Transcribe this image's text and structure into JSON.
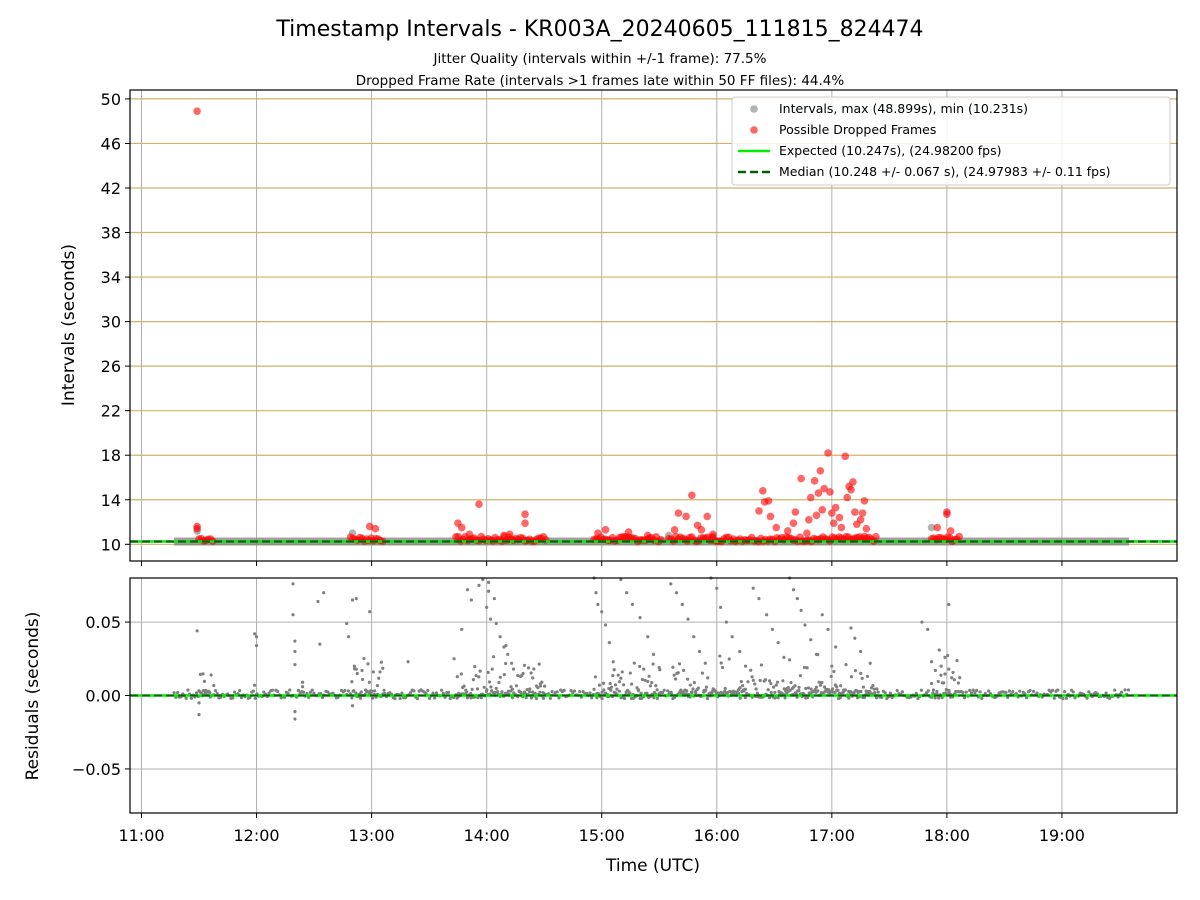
{
  "title": "Timestamp Intervals - KR003A_20240605_111815_824474",
  "subtitle_line1": "Jitter Quality (intervals within +/-1 frame): 77.5%",
  "subtitle_line2": "Dropped Frame Rate (intervals >1 frames late within 50 FF files): 44.4%",
  "colors": {
    "intervals": "#808080",
    "dropped": "#ff0000",
    "expected": "#00ee00",
    "median": "#006400",
    "hgrid_top": "#d4b06a",
    "grid": "#b0b0b0"
  },
  "chart_data": [
    {
      "type": "scatter",
      "name": "intervals",
      "ylabel": "Intervals (seconds)",
      "xlim": [
        "10:54",
        "20:00"
      ],
      "ylim": [
        8.5,
        50.8
      ],
      "yticks": [
        10,
        14,
        18,
        22,
        26,
        30,
        34,
        38,
        42,
        46,
        50
      ],
      "xticks": [
        "11:00",
        "12:00",
        "13:00",
        "14:00",
        "15:00",
        "16:00",
        "17:00",
        "18:00",
        "19:00"
      ],
      "grid": true,
      "legend_position": "top-right",
      "legend": [
        "Intervals, max (48.899s), min (10.231s)",
        "Possible Dropped Frames",
        "Expected (10.247s), (24.98200 fps)",
        "Median (10.248 +/- 0.067 s), (24.97983 +/- 0.11 fps)"
      ],
      "expected": 10.247,
      "median": 10.248,
      "max": 48.899,
      "min": 10.231,
      "dropped_points": [
        [
          "11:29",
          48.9
        ],
        [
          "11:29",
          11.6
        ],
        [
          "11:29",
          11.4
        ],
        [
          "12:59",
          11.6
        ],
        [
          "13:02",
          11.4
        ],
        [
          "13:45",
          11.9
        ],
        [
          "13:47",
          11.5
        ],
        [
          "13:51",
          10.9
        ],
        [
          "13:56",
          13.6
        ],
        [
          "14:09",
          10.8
        ],
        [
          "14:12",
          10.9
        ],
        [
          "14:20",
          12.7
        ],
        [
          "14:20",
          11.9
        ],
        [
          "14:58",
          11.0
        ],
        [
          "15:02",
          11.3
        ],
        [
          "15:14",
          11.1
        ],
        [
          "15:24",
          10.8
        ],
        [
          "15:38",
          11.3
        ],
        [
          "15:40",
          12.8
        ],
        [
          "15:44",
          12.5
        ],
        [
          "15:47",
          14.4
        ],
        [
          "15:50",
          11.7
        ],
        [
          "15:52",
          11.3
        ],
        [
          "15:55",
          12.5
        ],
        [
          "15:58",
          10.9
        ],
        [
          "16:22",
          13.0
        ],
        [
          "16:24",
          14.8
        ],
        [
          "16:25",
          13.8
        ],
        [
          "16:27",
          13.9
        ],
        [
          "16:28",
          12.5
        ],
        [
          "16:31",
          11.5
        ],
        [
          "16:37",
          11.2
        ],
        [
          "16:40",
          11.9
        ],
        [
          "16:41",
          12.9
        ],
        [
          "16:44",
          15.9
        ],
        [
          "16:47",
          11.0
        ],
        [
          "16:48",
          12.2
        ],
        [
          "16:49",
          14.2
        ],
        [
          "16:51",
          15.7
        ],
        [
          "16:52",
          12.6
        ],
        [
          "16:53",
          14.6
        ],
        [
          "16:54",
          16.6
        ],
        [
          "16:55",
          13.1
        ],
        [
          "16:56",
          15.0
        ],
        [
          "16:58",
          18.2
        ],
        [
          "16:59",
          14.7
        ],
        [
          "17:00",
          12.8
        ],
        [
          "17:01",
          11.9
        ],
        [
          "17:02",
          13.3
        ],
        [
          "17:04",
          12.4
        ],
        [
          "17:05",
          11.5
        ],
        [
          "17:07",
          17.9
        ],
        [
          "17:08",
          14.2
        ],
        [
          "17:09",
          15.2
        ],
        [
          "17:10",
          14.9
        ],
        [
          "17:11",
          15.6
        ],
        [
          "17:12",
          12.9
        ],
        [
          "17:13",
          11.8
        ],
        [
          "17:15",
          12.2
        ],
        [
          "17:16",
          12.8
        ],
        [
          "17:17",
          13.9
        ],
        [
          "17:18",
          11.4
        ],
        [
          "17:55",
          11.5
        ],
        [
          "18:00",
          12.9
        ],
        [
          "18:00",
          12.7
        ],
        [
          "18:02",
          11.2
        ]
      ],
      "dropped_clusters": [
        [
          "11:30",
          "11:38"
        ],
        [
          "12:49",
          "13:07"
        ],
        [
          "13:44",
          "14:31"
        ],
        [
          "14:56",
          "15:31"
        ],
        [
          "15:35",
          "17:24"
        ],
        [
          "17:52",
          "18:07"
        ]
      ],
      "gray_points": [
        [
          "11:29",
          11.2
        ],
        [
          "12:50",
          11.0
        ],
        [
          "15:35",
          10.8
        ],
        [
          "15:58",
          10.7
        ],
        [
          "17:52",
          11.5
        ]
      ],
      "gray_band": [
        "11:17",
        "19:35"
      ]
    },
    {
      "type": "scatter",
      "name": "residuals",
      "ylabel": "Residuals (seconds)",
      "xlabel": "Time (UTC)",
      "xlim": [
        "10:54",
        "20:00"
      ],
      "ylim": [
        -0.08,
        0.08
      ],
      "yticks": [
        -0.05,
        0.0,
        0.05
      ],
      "ytick_labels": [
        "−0.05",
        "0.00",
        "0.05"
      ],
      "xticks": [
        "11:00",
        "12:00",
        "13:00",
        "14:00",
        "15:00",
        "16:00",
        "17:00",
        "18:00",
        "19:00"
      ],
      "grid": true,
      "expected": 0.0,
      "median": 0.0,
      "sample_points": [
        [
          "11:29",
          0.044
        ],
        [
          "11:30",
          -0.013
        ],
        [
          "11:30",
          -0.005
        ],
        [
          "11:59",
          0.042
        ],
        [
          "12:00",
          0.04
        ],
        [
          "12:00",
          0.034
        ],
        [
          "11:59",
          0.007
        ],
        [
          "12:19",
          0.076
        ],
        [
          "12:19",
          0.055
        ],
        [
          "12:20",
          0.037
        ],
        [
          "12:20",
          0.03
        ],
        [
          "12:20",
          0.021
        ],
        [
          "12:20",
          -0.016
        ],
        [
          "12:20",
          -0.011
        ],
        [
          "12:24",
          0.009
        ],
        [
          "12:24",
          0.006
        ],
        [
          "12:32",
          0.064
        ],
        [
          "12:33",
          0.035
        ],
        [
          "12:35",
          0.07
        ],
        [
          "12:47",
          0.049
        ],
        [
          "12:48",
          0.04
        ],
        [
          "12:50",
          0.065
        ],
        [
          "12:52",
          0.066
        ],
        [
          "12:51",
          0.02
        ],
        [
          "12:52",
          0.018
        ],
        [
          "12:55",
          0.017
        ],
        [
          "12:59",
          0.057
        ],
        [
          "12:50",
          -0.007
        ],
        [
          "13:19",
          0.023
        ],
        [
          "13:43",
          0.025
        ],
        [
          "13:47",
          0.045
        ],
        [
          "13:50",
          0.072
        ],
        [
          "13:52",
          0.065
        ],
        [
          "13:56",
          0.075
        ],
        [
          "13:58",
          0.079
        ],
        [
          "14:01",
          0.077
        ],
        [
          "14:00",
          0.06
        ],
        [
          "14:02",
          0.052
        ],
        [
          "14:05",
          0.049
        ],
        [
          "14:07",
          0.04
        ],
        [
          "14:09",
          0.033
        ],
        [
          "14:11",
          0.028
        ],
        [
          "14:13",
          0.022
        ],
        [
          "14:01",
          0.071
        ],
        [
          "14:04",
          0.066
        ],
        [
          "14:10",
          0.034
        ],
        [
          "14:14",
          0.018
        ],
        [
          "14:19",
          0.015
        ],
        [
          "14:24",
          0.012
        ],
        [
          "14:28",
          0.008
        ],
        [
          "14:56",
          0.08
        ],
        [
          "14:57",
          0.07
        ],
        [
          "14:58",
          0.062
        ],
        [
          "15:00",
          0.057
        ],
        [
          "15:02",
          0.048
        ],
        [
          "15:04",
          0.036
        ],
        [
          "15:06",
          0.023
        ],
        [
          "15:10",
          0.079
        ],
        [
          "15:13",
          0.07
        ],
        [
          "15:16",
          0.062
        ],
        [
          "15:20",
          0.053
        ],
        [
          "15:24",
          0.04
        ],
        [
          "15:27",
          0.028
        ],
        [
          "15:30",
          0.019
        ],
        [
          "15:36",
          0.076
        ],
        [
          "15:39",
          0.07
        ],
        [
          "15:42",
          0.062
        ],
        [
          "15:45",
          0.052
        ],
        [
          "15:48",
          0.04
        ],
        [
          "15:51",
          0.03
        ],
        [
          "15:54",
          0.022
        ],
        [
          "15:57",
          0.08
        ],
        [
          "16:00",
          0.073
        ],
        [
          "16:02",
          0.06
        ],
        [
          "16:05",
          0.05
        ],
        [
          "16:08",
          0.04
        ],
        [
          "16:12",
          0.03
        ],
        [
          "16:15",
          0.02
        ],
        [
          "16:19",
          0.073
        ],
        [
          "16:22",
          0.066
        ],
        [
          "16:26",
          0.055
        ],
        [
          "16:29",
          0.045
        ],
        [
          "16:32",
          0.036
        ],
        [
          "16:35",
          0.026
        ],
        [
          "16:38",
          0.08
        ],
        [
          "16:40",
          0.072
        ],
        [
          "16:42",
          0.066
        ],
        [
          "16:44",
          0.058
        ],
        [
          "16:46",
          0.048
        ],
        [
          "16:49",
          0.038
        ],
        [
          "16:52",
          0.028
        ],
        [
          "16:55",
          0.055
        ],
        [
          "16:58",
          0.045
        ],
        [
          "17:02",
          0.033
        ],
        [
          "17:00",
          0.02
        ],
        [
          "17:10",
          0.046
        ],
        [
          "17:12",
          0.039
        ],
        [
          "17:15",
          0.03
        ],
        [
          "17:20",
          0.022
        ],
        [
          "17:47",
          0.05
        ],
        [
          "17:50",
          0.045
        ],
        [
          "17:52",
          0.023
        ],
        [
          "17:54",
          0.017
        ],
        [
          "17:56",
          0.031
        ],
        [
          "17:57",
          0.02
        ],
        [
          "17:59",
          0.026
        ],
        [
          "18:01",
          0.018
        ],
        [
          "18:01",
          0.062
        ]
      ]
    }
  ]
}
